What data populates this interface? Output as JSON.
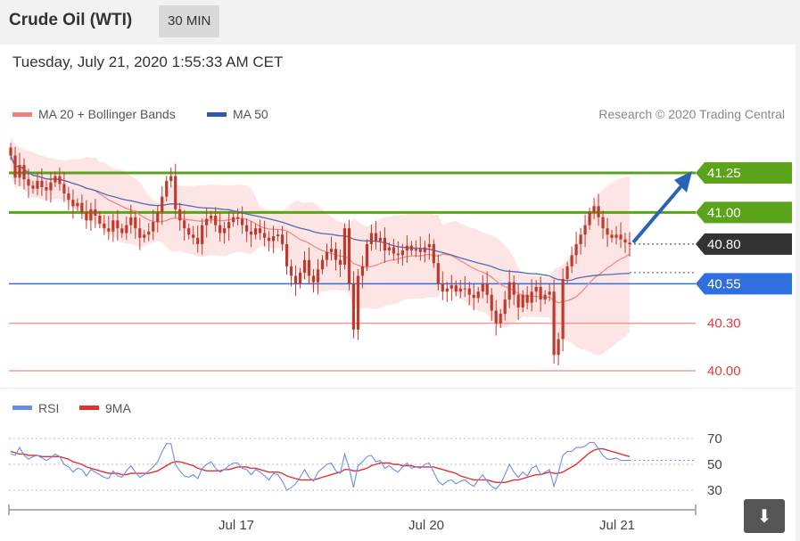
{
  "header": {
    "title": "Crude Oil (WTI)",
    "timeframe": "30 MIN"
  },
  "timestamp": "Tuesday, July 21, 2020 1:55:33 AM CET",
  "icons": {
    "download": "download-arrow-icon"
  },
  "colors": {
    "bb_fill": "#fde0e0",
    "bb_legend": "#f08080",
    "ma20": "#f28a8a",
    "ma50": "#4a6fb5",
    "candle": "#c0392b",
    "resistance": "#5aa31a",
    "support_blue": "#2f6fe0",
    "support_red": "#f28a8a",
    "pivot": "#333333",
    "rsi": "#6a8ee6",
    "rsi_ma": "#e03030",
    "arrow": "#2a63b5"
  },
  "chart_data": [
    {
      "type": "candlestick",
      "title": "Crude Oil (WTI)",
      "timeframe": "30 MIN",
      "legend": [
        {
          "name": "MA 20 + Bollinger Bands",
          "color": "#f08080"
        },
        {
          "name": "MA 50",
          "color": "#2f5aa8"
        }
      ],
      "credit": "Research © 2020 Trading Central",
      "x_tick_labels": [
        "Jul 17",
        "Jul 20",
        "Jul 21"
      ],
      "ylim": [
        39.95,
        41.55
      ],
      "levels": [
        {
          "value": 41.25,
          "label": "41.25",
          "kind": "resistance"
        },
        {
          "value": 41.0,
          "label": "41.00",
          "kind": "resistance"
        },
        {
          "value": 40.8,
          "label": "40.80",
          "kind": "pivot"
        },
        {
          "value": 40.55,
          "label": "40.55",
          "kind": "support"
        },
        {
          "value": 40.3,
          "label": "40.30",
          "kind": "support"
        },
        {
          "value": 40.0,
          "label": "40.00",
          "kind": "support"
        }
      ],
      "target_arrow": {
        "from": 40.8,
        "to": 41.25
      },
      "candles_close": [
        41.36,
        41.22,
        41.3,
        41.21,
        41.17,
        41.15,
        41.2,
        41.16,
        41.14,
        41.19,
        41.23,
        41.18,
        41.12,
        41.08,
        41.04,
        41.06,
        41.0,
        40.95,
        41.02,
        40.98,
        40.93,
        40.9,
        40.88,
        40.95,
        40.9,
        40.87,
        40.92,
        40.97,
        40.9,
        40.84,
        40.86,
        40.88,
        40.94,
        41.0,
        41.1,
        41.2,
        41.23,
        41.02,
        40.95,
        40.9,
        40.86,
        40.84,
        40.8,
        40.92,
        40.96,
        40.98,
        40.92,
        40.87,
        40.9,
        40.94,
        40.97,
        40.96,
        40.92,
        40.88,
        40.86,
        40.9,
        40.87,
        40.84,
        40.82,
        40.85,
        40.86,
        40.8,
        40.66,
        40.6,
        40.55,
        40.62,
        40.7,
        40.6,
        40.56,
        40.64,
        40.7,
        40.75,
        40.77,
        40.7,
        40.67,
        40.9,
        40.55,
        40.26,
        40.6,
        40.66,
        40.8,
        40.87,
        40.82,
        40.84,
        40.76,
        40.78,
        40.74,
        40.73,
        40.76,
        40.79,
        40.76,
        40.77,
        40.75,
        40.78,
        40.8,
        40.68,
        40.55,
        40.5,
        40.52,
        40.54,
        40.5,
        40.52,
        40.52,
        40.48,
        40.46,
        40.5,
        40.55,
        40.48,
        40.38,
        40.3,
        40.36,
        40.45,
        40.56,
        40.48,
        40.4,
        40.48,
        40.43,
        40.5,
        40.53,
        40.45,
        40.48,
        40.5,
        40.1,
        40.2,
        40.58,
        40.66,
        40.73,
        40.8,
        40.86,
        40.92,
        41.0,
        41.04,
        40.97,
        40.9,
        40.86,
        40.84,
        40.86,
        40.83,
        40.81,
        40.8
      ]
    },
    {
      "type": "line",
      "legend": [
        {
          "name": "RSI",
          "color": "#6a8ee6"
        },
        {
          "name": "9MA",
          "color": "#e03030"
        }
      ],
      "y_tick_labels": [
        "70",
        "50",
        "30"
      ],
      "ylim": [
        25,
        75
      ],
      "series": [
        {
          "name": "RSI",
          "values": [
            58,
            57,
            63,
            57,
            54,
            56,
            57,
            55,
            53,
            55,
            58,
            56,
            50,
            48,
            44,
            47,
            46,
            41,
            46,
            44,
            42,
            40,
            39,
            45,
            41,
            40,
            45,
            49,
            44,
            40,
            42,
            45,
            48,
            52,
            60,
            66,
            66,
            50,
            45,
            41,
            40,
            42,
            39,
            47,
            50,
            52,
            47,
            44,
            46,
            49,
            51,
            51,
            47,
            46,
            42,
            46,
            44,
            41,
            38,
            43,
            42,
            37,
            30,
            32,
            35,
            40,
            46,
            40,
            37,
            44,
            47,
            50,
            51,
            45,
            43,
            58,
            47,
            32,
            49,
            52,
            56,
            57,
            52,
            53,
            47,
            49,
            46,
            44,
            48,
            51,
            47,
            48,
            47,
            50,
            51,
            44,
            37,
            34,
            37,
            38,
            35,
            37,
            38,
            35,
            33,
            38,
            42,
            37,
            33,
            31,
            35,
            42,
            50,
            44,
            40,
            44,
            41,
            47,
            49,
            42,
            44,
            46,
            33,
            44,
            57,
            60,
            60,
            63,
            63,
            64,
            67,
            67,
            62,
            57,
            54,
            54,
            55,
            53,
            53,
            53
          ]
        },
        {
          "name": "9MA",
          "values": [
            60,
            59,
            58,
            58,
            57,
            57,
            57,
            56,
            56,
            56,
            56,
            56,
            55,
            54,
            52,
            51,
            50,
            48,
            47,
            46,
            45,
            44,
            43,
            43,
            43,
            42,
            42,
            43,
            43,
            43,
            43,
            43,
            44,
            45,
            47,
            49,
            51,
            52,
            52,
            51,
            50,
            49,
            47,
            46,
            45,
            45,
            45,
            45,
            46,
            46,
            47,
            48,
            48,
            48,
            47,
            47,
            46,
            45,
            44,
            44,
            44,
            43,
            41,
            40,
            39,
            38,
            38,
            38,
            38,
            39,
            40,
            41,
            42,
            43,
            44,
            46,
            46,
            45,
            45,
            46,
            47,
            49,
            50,
            51,
            51,
            51,
            50,
            50,
            49,
            49,
            49,
            48,
            48,
            48,
            48,
            48,
            47,
            46,
            45,
            44,
            43,
            41,
            40,
            39,
            38,
            38,
            38,
            38,
            37,
            36,
            36,
            36,
            37,
            38,
            38,
            39,
            40,
            41,
            42,
            42,
            43,
            44,
            43,
            43,
            44,
            46,
            48,
            50,
            53,
            56,
            59,
            61,
            62,
            62,
            61,
            60,
            59,
            58,
            57,
            56
          ]
        }
      ]
    }
  ]
}
